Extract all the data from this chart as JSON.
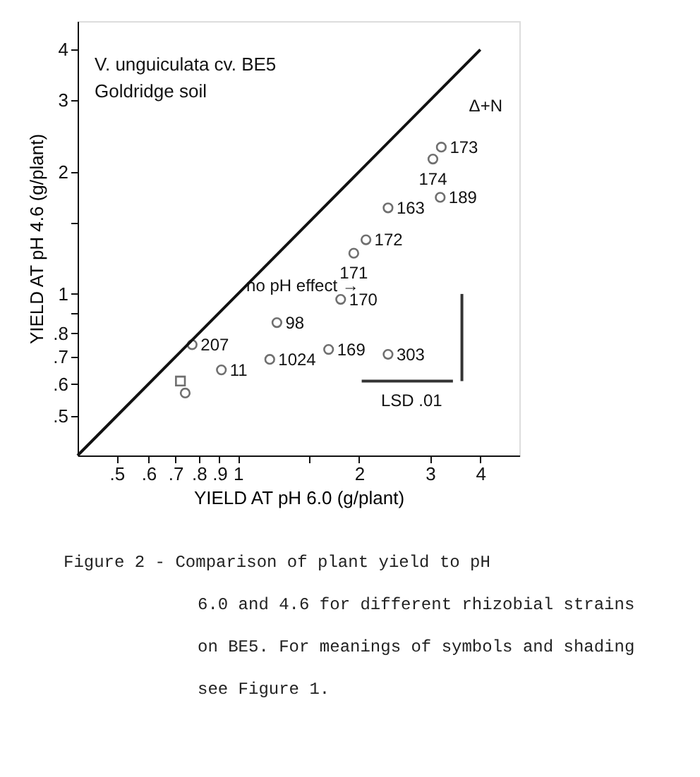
{
  "chart_data": {
    "type": "scatter",
    "title": "V. unguiculata cv. BE5",
    "subtitle": "Goldridge soil",
    "xlabel": "YIELD AT pH 6.0 (g/plant)",
    "ylabel": "YIELD AT pH 4.6 (g/plant)",
    "log": "xy",
    "grid": false,
    "legend": false,
    "xlim": [
      0.4,
      5
    ],
    "ylim": [
      0.4,
      4.7
    ],
    "xticks": [
      {
        "value": 0.5,
        "label": ".5"
      },
      {
        "value": 0.6,
        "label": ".6"
      },
      {
        "value": 0.7,
        "label": ".7"
      },
      {
        "value": 0.8,
        "label": ".8"
      },
      {
        "value": 0.9,
        "label": ".9"
      },
      1,
      {
        "value": 1.5,
        "label": null
      },
      2,
      3,
      4
    ],
    "yticks": [
      {
        "value": 0.5,
        "label": ".5"
      },
      {
        "value": 0.6,
        "label": ".6"
      },
      {
        "value": 0.7,
        "label": ".7"
      },
      {
        "value": 0.8,
        "label": ".8"
      },
      {
        "value": 0.9,
        "label": null
      },
      1,
      {
        "value": 1.5,
        "label": null
      },
      2,
      3,
      4
    ],
    "series": [
      {
        "marker": "circle",
        "color": "#333333",
        "x": [
          0.77,
          0.74,
          0.91,
          1.25,
          1.2,
          1.68,
          2.36,
          1.8,
          1.94,
          2.08,
          2.36,
          3.18,
          3.2,
          3.05
        ],
        "values": [
          0.75,
          0.57,
          0.65,
          0.85,
          0.69,
          0.73,
          0.71,
          0.97,
          1.26,
          1.36,
          1.63,
          1.73,
          2.3,
          2.15
        ]
      },
      {
        "marker": "square",
        "color": "#333333",
        "x": [
          0.72
        ],
        "values": [
          0.61
        ]
      },
      {
        "type": "line",
        "line_style": "solid",
        "color": "#111111",
        "x": [
          0.4,
          4.0
        ],
        "values": [
          0.4,
          4.0
        ]
      },
      {
        "type": "line",
        "line_style": "solid",
        "color": "#333333",
        "x": [
          2.03,
          3.42
        ],
        "values": [
          0.61,
          0.61
        ]
      },
      {
        "type": "line",
        "line_style": "solid",
        "color": "#333333",
        "x": [
          3.6,
          3.6
        ],
        "values": [
          0.61,
          1.0
        ]
      }
    ],
    "annotations": [
      {
        "text": "207",
        "x": 0.77,
        "y": 0.75
      },
      {
        "text": "11",
        "x": 0.91,
        "y": 0.65
      },
      {
        "text": "98",
        "x": 1.25,
        "y": 0.85
      },
      {
        "text": "1024",
        "x": 1.2,
        "y": 0.69
      },
      {
        "text": "169",
        "x": 1.68,
        "y": 0.73
      },
      {
        "text": "303",
        "x": 2.36,
        "y": 0.71
      },
      {
        "text": "170",
        "x": 1.8,
        "y": 0.97
      },
      {
        "text": "171",
        "x": 1.94,
        "y": 1.26
      },
      {
        "text": "172",
        "x": 2.08,
        "y": 1.36
      },
      {
        "text": "163",
        "x": 2.36,
        "y": 1.63
      },
      {
        "text": "189",
        "x": 3.18,
        "y": 1.73
      },
      {
        "text": "173",
        "x": 3.2,
        "y": 2.3
      },
      {
        "text": "174",
        "x": 3.05,
        "y": 2.15
      },
      "Δ+N",
      {
        "text": "no pH effect →",
        "x": 1.0,
        "y": 1.05
      },
      {
        "text": "LSD .01",
        "x": 2.7,
        "y": 0.61
      },
      "Figure 2 - Comparison of plant yield to pH 6.0 and 4.6 for different rhizobial strains on BE5. For meanings of symbols and shading see Figure 1."
    ]
  }
}
